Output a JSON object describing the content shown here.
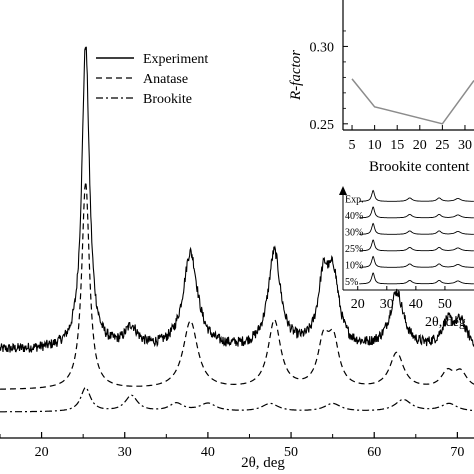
{
  "chart_data": [
    {
      "id": "main",
      "type": "line",
      "xlabel": "2θ, deg",
      "ylabel": "",
      "xlim": [
        15,
        72
      ],
      "ylim": [
        0,
        100
      ],
      "x_ticks": [
        20,
        30,
        40,
        50,
        60,
        70
      ],
      "x_tick_labels": [
        "20",
        "30",
        "40",
        "50",
        "60",
        "70"
      ],
      "legend": {
        "placement": "top-left",
        "entries": [
          {
            "label": "Experiment",
            "style": "solid"
          },
          {
            "label": "Anatase",
            "style": "dashed"
          },
          {
            "label": "Brookite",
            "style": "dashdot"
          }
        ]
      },
      "series": [
        {
          "name": "Experiment",
          "style": "solid",
          "baseline": 22,
          "peaks": [
            [
              25.3,
              76,
              0.55
            ],
            [
              30.8,
              5,
              0.9
            ],
            [
              37.9,
              24,
              1.05
            ],
            [
              48.0,
              24,
              0.9
            ],
            [
              53.9,
              16,
              0.8
            ],
            [
              55.1,
              16,
              0.8
            ],
            [
              62.7,
              14,
              1.0
            ],
            [
              68.8,
              6,
              0.9
            ],
            [
              70.4,
              6,
              0.9
            ]
          ]
        },
        {
          "name": "Anatase",
          "style": "dashed",
          "baseline": 12,
          "peaks": [
            [
              25.3,
              52,
              0.55
            ],
            [
              37.9,
              17,
              1.05
            ],
            [
              48.0,
              17,
              0.9
            ],
            [
              53.9,
              11,
              0.8
            ],
            [
              55.1,
              11,
              0.8
            ],
            [
              62.7,
              9,
              1.0
            ],
            [
              68.8,
              4,
              0.9
            ],
            [
              70.4,
              4,
              0.9
            ]
          ]
        },
        {
          "name": "Brookite",
          "style": "dashdot",
          "baseline": 6.5,
          "peaks": [
            [
              25.3,
              6,
              0.7
            ],
            [
              30.8,
              4,
              0.9
            ],
            [
              36.2,
              2,
              1.0
            ],
            [
              40.0,
              2,
              1.2
            ],
            [
              47.5,
              2,
              1.2
            ],
            [
              55.0,
              2,
              1.2
            ],
            [
              63.5,
              3,
              1.2
            ],
            [
              69.0,
              2,
              1.2
            ]
          ]
        }
      ]
    },
    {
      "id": "rfactor",
      "type": "line",
      "placement": "inset-top-right",
      "xlabel": "Brookite content",
      "ylabel": "R-factor",
      "xlim": [
        3,
        32
      ],
      "ylim": [
        0.246,
        0.33
      ],
      "x_ticks": [
        5,
        10,
        15,
        20,
        25,
        30
      ],
      "x_tick_labels": [
        "5",
        "10",
        "15",
        "20",
        "25",
        "30"
      ],
      "y_ticks": [
        0.25,
        0.3
      ],
      "y_tick_labels": [
        "0.25",
        "0.30"
      ],
      "x": [
        5,
        10,
        25,
        32
      ],
      "y": [
        0.279,
        0.261,
        0.25,
        0.278
      ]
    },
    {
      "id": "stack",
      "type": "line",
      "placement": "inset-right",
      "xlabel": "2θ, deg",
      "xlim": [
        17,
        60
      ],
      "x_ticks": [
        20,
        30,
        40,
        50
      ],
      "x_tick_labels": [
        "20",
        "30",
        "40",
        "50"
      ],
      "rows": [
        "5%",
        "10%",
        "25%",
        "30%",
        "40%",
        "Exp."
      ]
    }
  ]
}
